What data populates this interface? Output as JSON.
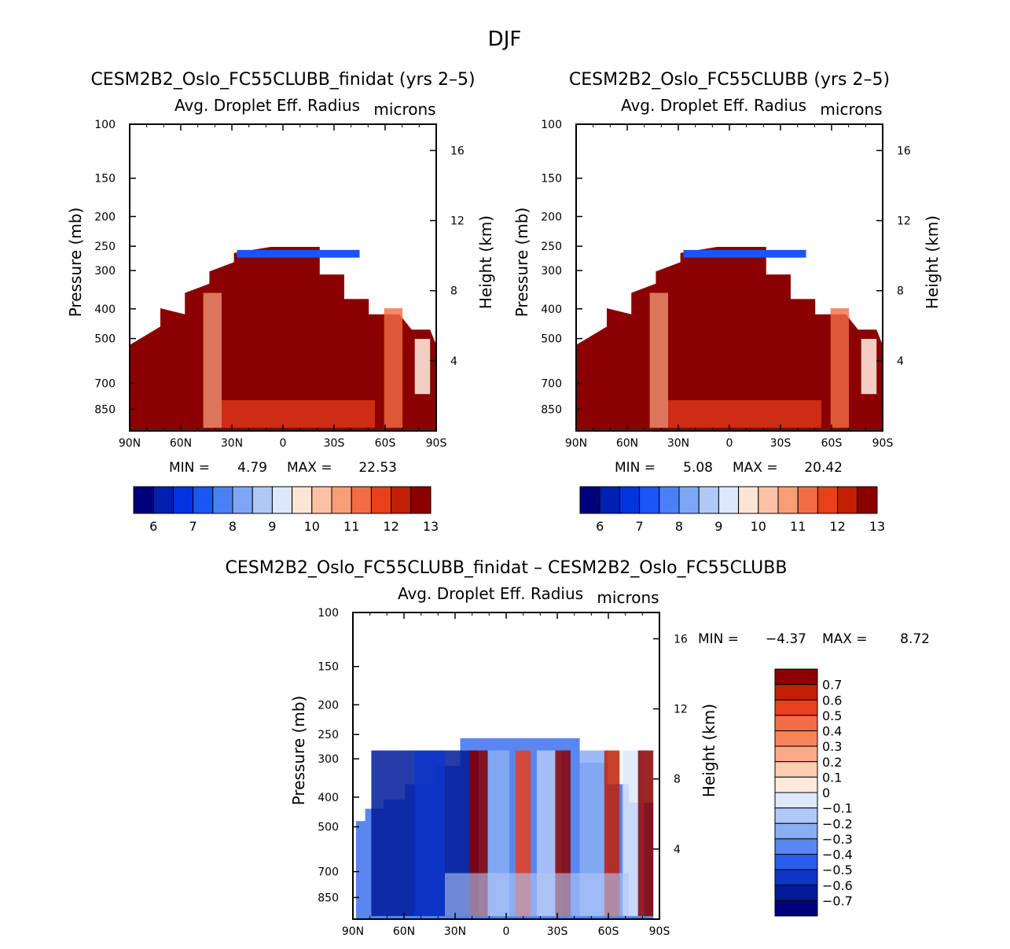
{
  "figure": {
    "title": "DJF"
  },
  "colors": {
    "positive_fill": "#8b0000",
    "missing": "#ffffff",
    "frame": "#000000"
  },
  "chart_data": [
    {
      "type": "heatmap",
      "title": "CESM2B2_Oslo_FC55CLUBB_finidat (yrs 2-5)",
      "variable": "Avg. Droplet Eff. Radius",
      "units": "microns",
      "xlabel": "",
      "ylabel": "Pressure (mb)",
      "ylabel_right": "Height (km)",
      "x_ticks": [
        "90N",
        "60N",
        "30N",
        "0",
        "30S",
        "60S",
        "90S"
      ],
      "y_ticks": [
        "100",
        "150",
        "200",
        "250",
        "300",
        "400",
        "500",
        "700",
        "850"
      ],
      "y_ticks_right": [
        "16",
        "12",
        "8",
        "4"
      ],
      "stats": {
        "min_label": "MIN =",
        "min": "4.79",
        "max_label": "MAX =",
        "max": "22.53"
      },
      "colorbar": {
        "levels": [
          "6",
          "7",
          "8",
          "9",
          "10",
          "11",
          "12",
          "13"
        ],
        "colors": [
          "#00007f",
          "#0020b0",
          "#0033e0",
          "#1a55f5",
          "#4a80f5",
          "#7fa6f5",
          "#b0c8f5",
          "#dce8fb",
          "#fde5d5",
          "#fbc2a6",
          "#f79d78",
          "#f26d45",
          "#e8401c",
          "#c22005",
          "#8b0000"
        ]
      }
    },
    {
      "type": "heatmap",
      "title": "CESM2B2_Oslo_FC55CLUBB (yrs 2-5)",
      "variable": "Avg. Droplet Eff. Radius",
      "units": "microns",
      "xlabel": "",
      "ylabel": "Pressure (mb)",
      "ylabel_right": "Height (km)",
      "x_ticks": [
        "90N",
        "60N",
        "30N",
        "0",
        "30S",
        "60S",
        "90S"
      ],
      "y_ticks": [
        "100",
        "150",
        "200",
        "250",
        "300",
        "400",
        "500",
        "700",
        "850"
      ],
      "y_ticks_right": [
        "16",
        "12",
        "8",
        "4"
      ],
      "stats": {
        "min_label": "MIN =",
        "min": "5.08",
        "max_label": "MAX =",
        "max": "20.42"
      },
      "colorbar": {
        "levels": [
          "6",
          "7",
          "8",
          "9",
          "10",
          "11",
          "12",
          "13"
        ],
        "colors": [
          "#00007f",
          "#0020b0",
          "#0033e0",
          "#1a55f5",
          "#4a80f5",
          "#7fa6f5",
          "#b0c8f5",
          "#dce8fb",
          "#fde5d5",
          "#fbc2a6",
          "#f79d78",
          "#f26d45",
          "#e8401c",
          "#c22005",
          "#8b0000"
        ]
      }
    },
    {
      "type": "heatmap",
      "title": "CESM2B2_Oslo_FC55CLUBB_finidat - CESM2B2_Oslo_FC55CLUBB",
      "variable": "Avg. Droplet Eff. Radius",
      "units": "microns",
      "xlabel": "",
      "ylabel": "Pressure (mb)",
      "ylabel_right": "Height (km)",
      "x_ticks": [
        "90N",
        "60N",
        "30N",
        "0",
        "30S",
        "60S",
        "90S"
      ],
      "y_ticks": [
        "100",
        "150",
        "200",
        "250",
        "300",
        "400",
        "500",
        "700",
        "850"
      ],
      "y_ticks_right": [
        "16",
        "12",
        "8",
        "4"
      ],
      "stats": {
        "min_label": "MIN =",
        "min": "-4.37",
        "max_label": "MAX =",
        "max": "8.72"
      },
      "colorbar": {
        "levels": [
          "0.7",
          "0.6",
          "0.5",
          "0.4",
          "0.3",
          "0.2",
          "0.1",
          "0",
          "-0.1",
          "-0.2",
          "-0.3",
          "-0.4",
          "-0.5",
          "-0.6",
          "-0.7"
        ],
        "colors": [
          "#8b0000",
          "#c22005",
          "#e8401c",
          "#f26d45",
          "#f7855c",
          "#fbaa85",
          "#fdcdb2",
          "#fdeadd",
          "#dce8fb",
          "#b0c8f5",
          "#8aaef5",
          "#5a86f0",
          "#2a5cf0",
          "#0d35c8",
          "#001a9a",
          "#00007f"
        ]
      }
    }
  ]
}
